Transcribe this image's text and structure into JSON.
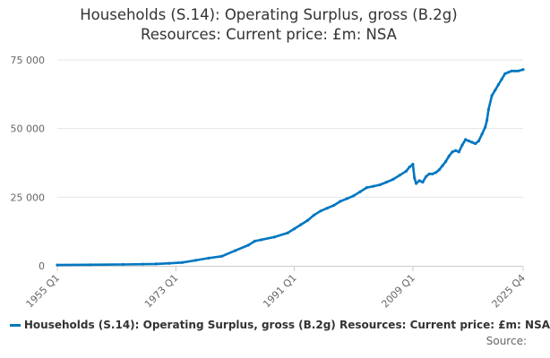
{
  "chart_data": {
    "type": "line",
    "title": "Households (S.14): Operating Surplus, gross (B.2g)",
    "subtitle": "Resources: Current price: £m: NSA",
    "xlabel": "",
    "ylabel": "",
    "ylim": [
      0,
      75000
    ],
    "y_ticks": [
      "0",
      "25 000",
      "50 000",
      "75 000"
    ],
    "x_ticks": [
      "1955 Q1",
      "1973 Q1",
      "1991 Q1",
      "2009 Q1",
      "2025 Q4"
    ],
    "grid": true,
    "legend_position": "bottom",
    "series": [
      {
        "name": "Households (S.14): Operating Surplus, gross (B.2g) Resources: Current price: £m: NSA",
        "color": "#0077c0",
        "x": [
          1955.0,
          1960.0,
          1965.0,
          1968.0,
          1970.0,
          1972.0,
          1974.0,
          1976.0,
          1978.0,
          1980.0,
          1982.0,
          1984.0,
          1985.0,
          1986.0,
          1988.0,
          1990.0,
          1991.0,
          1992.0,
          1993.0,
          1994.0,
          1995.0,
          1996.0,
          1997.0,
          1998.0,
          1999.0,
          2000.0,
          2001.0,
          2002.0,
          2003.0,
          2004.0,
          2005.0,
          2006.0,
          2007.0,
          2008.0,
          2008.5,
          2009.0,
          2009.25,
          2009.5,
          2010.0,
          2010.5,
          2011.0,
          2011.5,
          2012.0,
          2012.5,
          2013.0,
          2013.5,
          2014.0,
          2014.5,
          2015.0,
          2015.5,
          2016.0,
          2016.5,
          2017.0,
          2017.5,
          2018.0,
          2018.5,
          2019.0,
          2019.5,
          2020.0,
          2020.25,
          2020.5,
          2021.0,
          2021.5,
          2022.0,
          2022.5,
          2023.0,
          2023.5,
          2024.0,
          2024.5,
          2025.0,
          2025.75
        ],
        "values": [
          300,
          400,
          500,
          600,
          700,
          900,
          1200,
          2000,
          2800,
          3500,
          5500,
          7500,
          9000,
          9500,
          10500,
          12000,
          13500,
          15000,
          16500,
          18500,
          20000,
          21000,
          22000,
          23500,
          24500,
          25500,
          27000,
          28500,
          29000,
          29500,
          30500,
          31500,
          33000,
          34500,
          36000,
          37000,
          32000,
          30000,
          31000,
          30500,
          32500,
          33500,
          33500,
          34000,
          35000,
          36500,
          38000,
          40000,
          41500,
          42000,
          41500,
          44000,
          46000,
          45500,
          45000,
          44500,
          45500,
          48000,
          50500,
          53000,
          57000,
          62000,
          64000,
          66000,
          68000,
          70000,
          70500,
          71000,
          71000,
          71000,
          71500
        ]
      }
    ],
    "source": "Source:"
  }
}
